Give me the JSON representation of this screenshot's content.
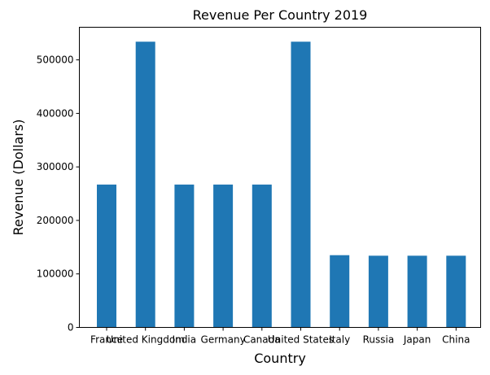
{
  "chart_data": {
    "type": "bar",
    "title": "Revenue Per Country 2019",
    "xlabel": "Country",
    "ylabel": "Revenue (Dollars)",
    "categories": [
      "France",
      "United Kingdom",
      "India",
      "Germany",
      "Canada",
      "United States",
      "Italy",
      "Russia",
      "Japan",
      "China"
    ],
    "values": [
      267000,
      534000,
      267000,
      267000,
      267000,
      534000,
      135000,
      134000,
      134000,
      134000
    ],
    "ylim": [
      0,
      561000
    ],
    "yticks": [
      0,
      100000,
      200000,
      300000,
      400000,
      500000
    ],
    "ytick_labels": [
      "0",
      "100000",
      "200000",
      "300000",
      "400000",
      "500000"
    ],
    "bar_color": "#1f77b4",
    "grid": false
  }
}
